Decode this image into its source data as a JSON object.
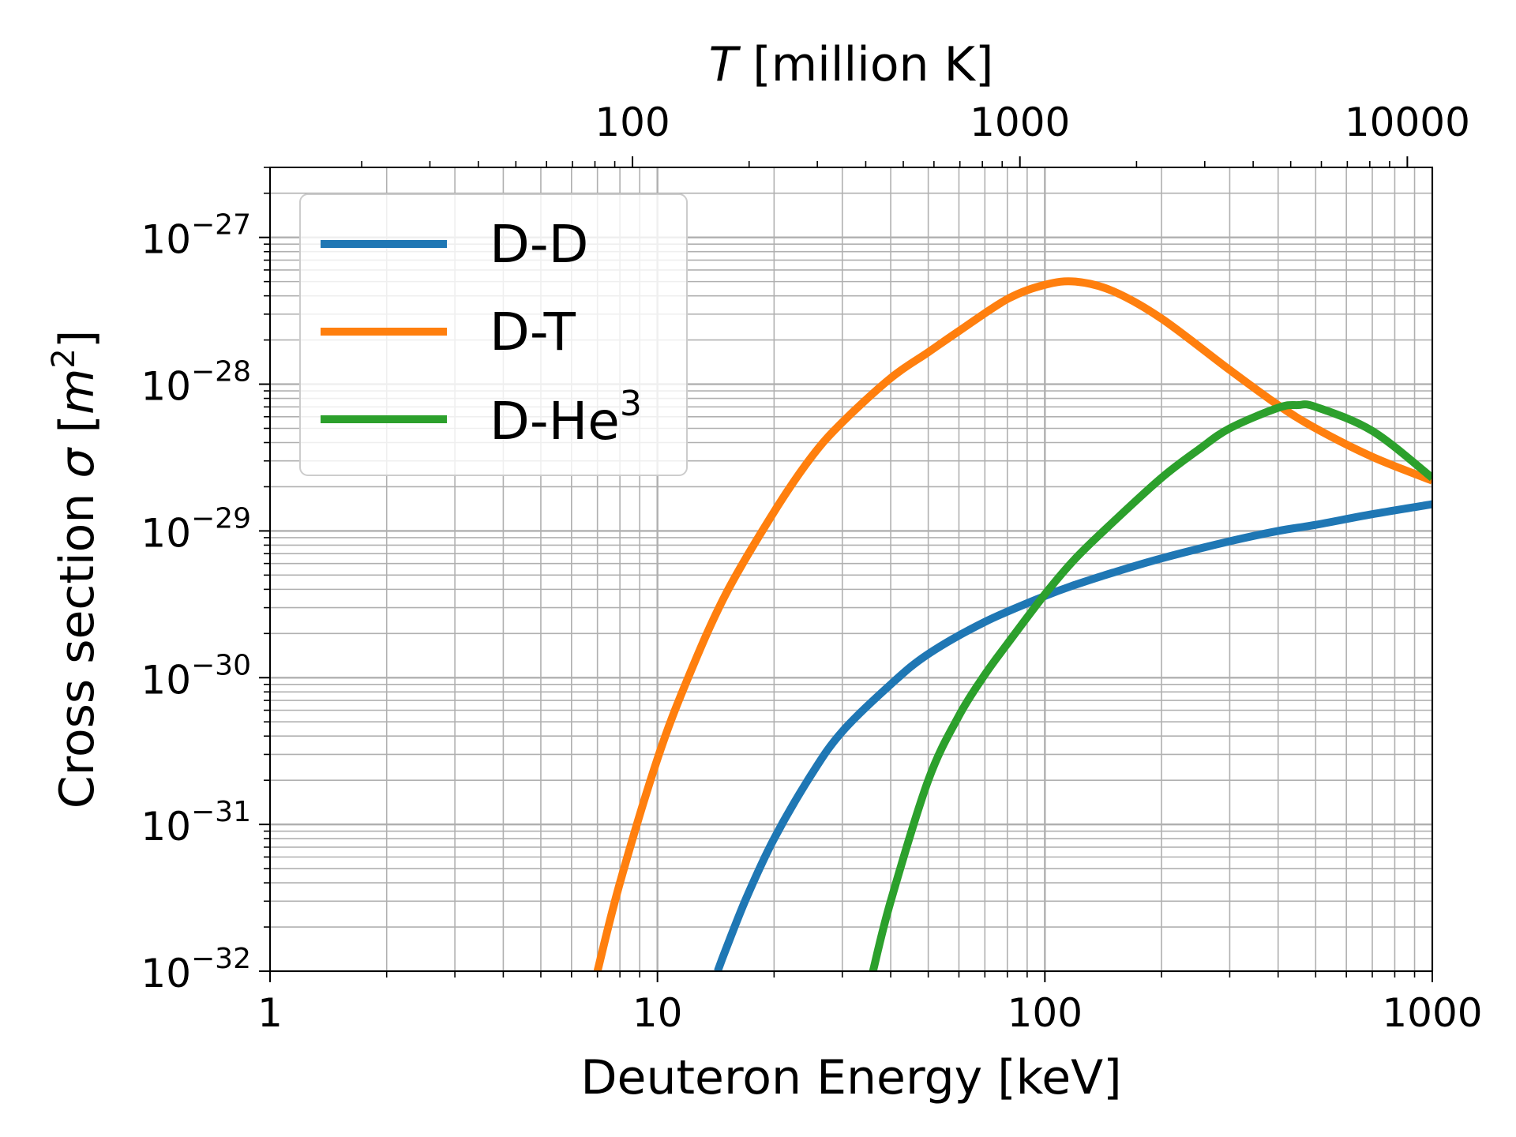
{
  "chart_data": {
    "type": "line",
    "xlabel": "Deuteron Energy [keV]",
    "ylabel_parts": [
      "Cross section ",
      "σ",
      " [",
      "m",
      "2",
      "]"
    ],
    "top_xlabel_parts": [
      "T",
      " [million K]"
    ],
    "x_scale": "log",
    "y_scale": "log",
    "xlim": [
      1,
      1000
    ],
    "ylim": [
      1e-32,
      3e-27
    ],
    "top_xlim": [
      0.0116,
      11.6
    ],
    "grid": "major and minor",
    "legend_position": "upper-left",
    "x_tick_labels": [
      "1",
      "10",
      "100",
      "1000"
    ],
    "x_tick_values": [
      1,
      10,
      100,
      1000
    ],
    "y_tick_values": [
      1e-32,
      1e-31,
      1e-30,
      1e-29,
      1e-28,
      1e-27
    ],
    "y_tick_mantissa": "10",
    "y_tick_exponents": [
      "−32",
      "−31",
      "−30",
      "−29",
      "−28",
      "−27"
    ],
    "top_tick_labels": [
      "100",
      "1000",
      "10000"
    ],
    "top_tick_values_million_K": [
      100,
      1000,
      10000
    ],
    "series": [
      {
        "name": "D-D",
        "color": "#1f77b4",
        "x": [
          14.3,
          15,
          17,
          20,
          25,
          30,
          40,
          50,
          70,
          100,
          120,
          150,
          200,
          300,
          400,
          500,
          700,
          1000
        ],
        "y": [
          1e-32,
          1.4e-32,
          3.2e-32,
          8e-32,
          2.2e-31,
          4.3e-31,
          9e-31,
          1.45e-30,
          2.4e-30,
          3.6e-30,
          4.3e-30,
          5.2e-30,
          6.5e-30,
          8.5e-30,
          1e-29,
          1.1e-29,
          1.3e-29,
          1.52e-29
        ]
      },
      {
        "name": "D-T",
        "color": "#ff7f0e",
        "x": [
          7,
          8,
          10,
          12,
          15,
          20,
          25,
          30,
          40,
          50,
          60,
          80,
          100,
          120,
          150,
          200,
          300,
          400,
          500,
          700,
          1000
        ],
        "y": [
          1e-32,
          4e-32,
          2.8e-31,
          1e-30,
          3.7e-30,
          1.35e-29,
          3.2e-29,
          5.5e-29,
          1.1e-28,
          1.65e-28,
          2.3e-28,
          3.8e-28,
          4.75e-28,
          5e-28,
          4.3e-28,
          2.8e-28,
          1.25e-28,
          7.2e-29,
          5e-29,
          3.2e-29,
          2.2e-29
        ]
      },
      {
        "name": "D-He",
        "name_sup": "3",
        "color": "#2ca02c",
        "x": [
          36,
          40,
          50,
          60,
          70,
          80,
          100,
          120,
          150,
          200,
          250,
          300,
          400,
          450,
          500,
          700,
          1000
        ],
        "y": [
          1e-32,
          3e-32,
          2e-31,
          5.5e-31,
          1.05e-30,
          1.7e-30,
          3.7e-30,
          6.5e-30,
          1.15e-29,
          2.3e-29,
          3.6e-29,
          5e-29,
          6.9e-29,
          7.2e-29,
          7e-29,
          4.8e-29,
          2.3e-29
        ]
      }
    ]
  }
}
